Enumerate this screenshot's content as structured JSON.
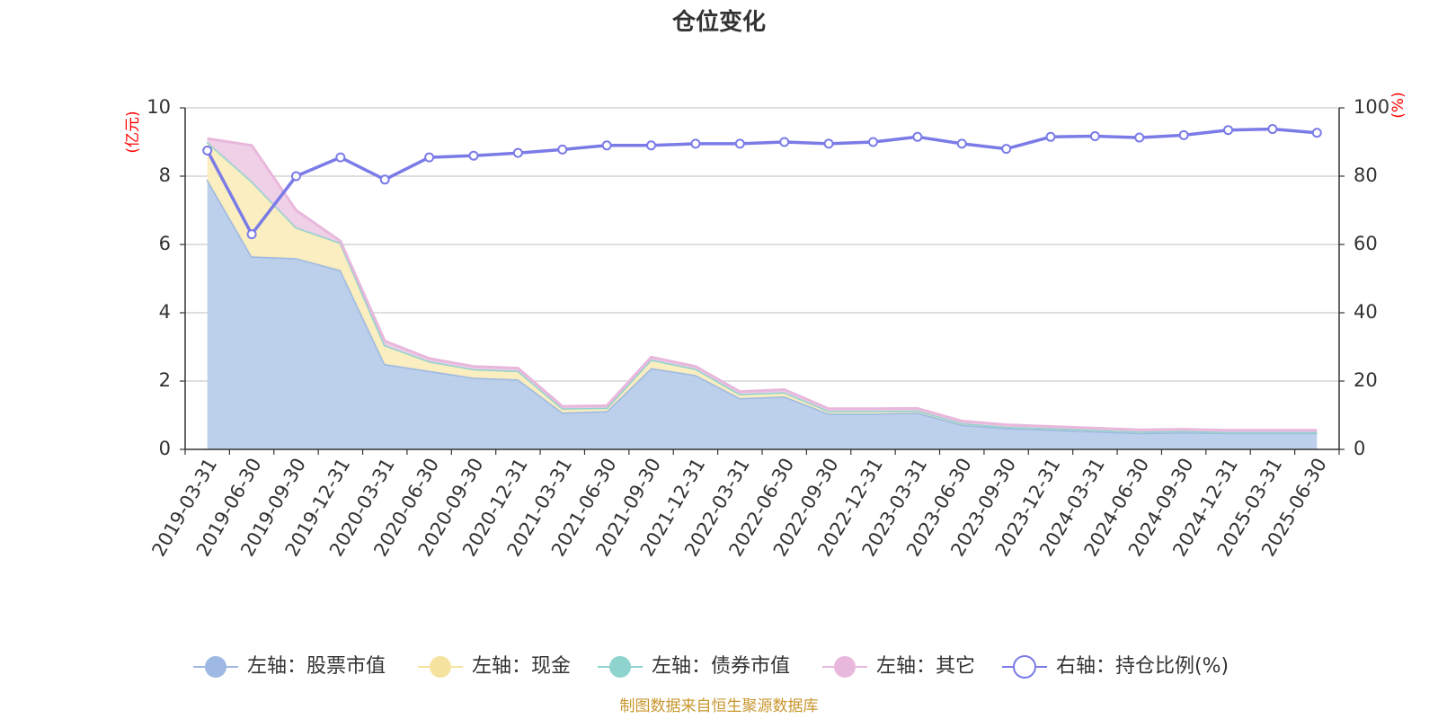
{
  "chart_data": {
    "type": "area",
    "title": "仓位变化",
    "left_axis_unit": "(亿元)",
    "right_axis_unit": "(%)",
    "ylim_left": [
      0,
      10
    ],
    "yticks_left": [
      "0",
      "2",
      "4",
      "6",
      "8",
      "10"
    ],
    "ylim_right": [
      0,
      100
    ],
    "yticks_right": [
      "0",
      "20",
      "40",
      "60",
      "80",
      "100"
    ],
    "categories": [
      "2019-03-31",
      "2019-06-30",
      "2019-09-30",
      "2019-12-31",
      "2020-03-31",
      "2020-06-30",
      "2020-09-30",
      "2020-12-31",
      "2021-03-31",
      "2021-06-30",
      "2021-09-30",
      "2021-12-31",
      "2022-03-31",
      "2022-06-30",
      "2022-09-30",
      "2022-12-31",
      "2023-03-31",
      "2023-06-30",
      "2023-09-30",
      "2023-12-31",
      "2024-03-31",
      "2024-06-30",
      "2024-09-30",
      "2024-12-31",
      "2025-03-31",
      "2025-06-30"
    ],
    "series": [
      {
        "name": "左轴：股票市值",
        "axis": "left",
        "stack": true,
        "color": "#9db8e2",
        "fill": "#b8cdeb",
        "values": [
          7.9,
          5.65,
          5.6,
          5.25,
          2.5,
          2.3,
          2.1,
          2.05,
          1.08,
          1.12,
          2.38,
          2.18,
          1.5,
          1.55,
          1.05,
          1.05,
          1.08,
          0.72,
          0.62,
          0.58,
          0.53,
          0.48,
          0.5,
          0.48,
          0.48,
          0.48
        ]
      },
      {
        "name": "左轴：现金",
        "axis": "left",
        "stack": true,
        "color": "#f6e39f",
        "fill": "#fbedbd",
        "values": [
          1.1,
          2.2,
          0.9,
          0.8,
          0.55,
          0.28,
          0.25,
          0.25,
          0.12,
          0.1,
          0.25,
          0.18,
          0.12,
          0.12,
          0.08,
          0.08,
          0.06,
          0.05,
          0.04,
          0.04,
          0.04,
          0.04,
          0.04,
          0.03,
          0.03,
          0.03
        ]
      },
      {
        "name": "左轴：债券市值",
        "axis": "left",
        "stack": true,
        "color": "#8fd3cf",
        "fill": "#b2e3e0",
        "values": [
          0,
          0,
          0,
          0,
          0,
          0,
          0,
          0,
          0,
          0,
          0,
          0,
          0,
          0,
          0,
          0,
          0,
          0,
          0,
          0,
          0,
          0,
          0,
          0,
          0,
          0
        ]
      },
      {
        "name": "左轴：其它",
        "axis": "left",
        "stack": true,
        "color": "#e8b8dc",
        "fill": "#efcde6",
        "values": [
          0.1,
          1.05,
          0.5,
          0.05,
          0.12,
          0.08,
          0.08,
          0.08,
          0.06,
          0.06,
          0.07,
          0.07,
          0.07,
          0.08,
          0.06,
          0.06,
          0.06,
          0.06,
          0.06,
          0.05,
          0.05,
          0.05,
          0.05,
          0.05,
          0.05,
          0.05
        ]
      },
      {
        "name": "右轴：持仓比例(%)",
        "axis": "right",
        "stack": false,
        "color": "#7b7be8",
        "values": [
          87.5,
          63,
          80,
          85.5,
          79,
          85.5,
          86,
          86.8,
          87.8,
          89,
          89,
          89.5,
          89.5,
          90,
          89.5,
          90,
          91.5,
          89.5,
          88,
          91.5,
          91.7,
          91.3,
          92,
          93.5,
          93.8,
          92.7
        ]
      }
    ],
    "legend_position": "bottom",
    "grid": true
  },
  "footer": {
    "source": "制图数据来自恒生聚源数据库"
  }
}
